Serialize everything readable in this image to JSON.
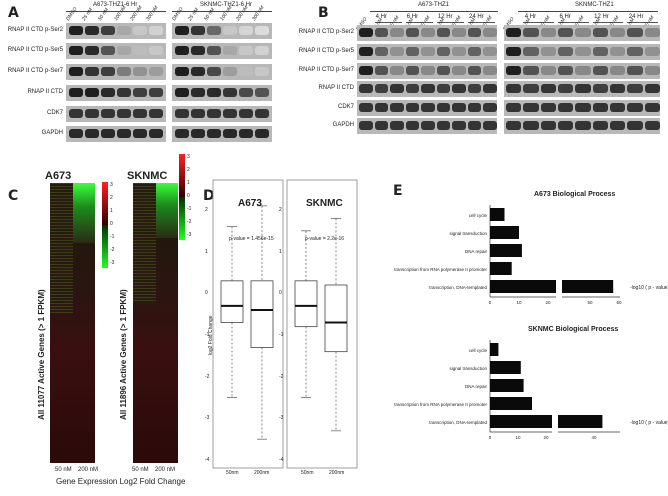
{
  "panels": {
    "A": "A",
    "B": "B",
    "C": "C",
    "D": "D",
    "E": "E"
  },
  "panel_a": {
    "groups": [
      "A673-THZ1-6 Hr",
      "SKNMC-THZ1-6 Hr"
    ],
    "lanes": [
      "DMSO",
      "25 nM",
      "50 nM",
      "100 nM",
      "200 nM",
      "300 nM"
    ],
    "rows": [
      "RNAP II CTD p-Ser2",
      "RNAP II CTD p-Ser5",
      "RNAP II CTD p-Ser7",
      "RNAP II CTD",
      "CDK7",
      "GAPDH"
    ],
    "intensity_a673": [
      [
        0.95,
        0.9,
        0.8,
        0.3,
        0.15,
        0.1
      ],
      [
        0.95,
        0.9,
        0.7,
        0.3,
        0.2,
        0.15
      ],
      [
        0.95,
        0.85,
        0.8,
        0.5,
        0.4,
        0.35
      ],
      [
        0.95,
        0.95,
        0.9,
        0.85,
        0.8,
        0.8
      ],
      [
        0.85,
        0.85,
        0.85,
        0.85,
        0.85,
        0.85
      ],
      [
        0.9,
        0.9,
        0.9,
        0.9,
        0.9,
        0.9
      ]
    ],
    "intensity_sknmc": [
      [
        0.95,
        0.85,
        0.6,
        0.15,
        0.08,
        0.05
      ],
      [
        0.95,
        0.9,
        0.7,
        0.3,
        0.15,
        0.1
      ],
      [
        0.95,
        0.9,
        0.75,
        0.35,
        0.2,
        0.15
      ],
      [
        0.95,
        0.9,
        0.9,
        0.85,
        0.75,
        0.7
      ],
      [
        0.85,
        0.85,
        0.85,
        0.85,
        0.85,
        0.85
      ],
      [
        0.9,
        0.9,
        0.9,
        0.9,
        0.9,
        0.9
      ]
    ]
  },
  "panel_b": {
    "groups": [
      "A673-THZ1",
      "SKNMC-THZ1"
    ],
    "times": [
      "4 Hr",
      "6 Hr",
      "12 Hr",
      "24 Hr"
    ],
    "lanes": [
      "DMSO",
      "50 nM",
      "100 nM",
      "50 nM",
      "100 nM",
      "50 nM",
      "100 nM",
      "50 nM",
      "100 nM"
    ],
    "rows": [
      "RNAP II CTD p-Ser2",
      "RNAP II CTD p-Ser5",
      "RNAP II CTD p-Ser7",
      "RNAP II CTD",
      "CDK7",
      "GAPDH"
    ]
  },
  "panel_c": {
    "lines": [
      "A673",
      "SKNMC"
    ],
    "ylabels": [
      "All 11077 Active Genes (> 1 FPKM)",
      "All 11896 Active Genes (> 1 FPKM)"
    ],
    "xlabels": [
      "50 nM",
      "200 nM"
    ],
    "bottom_label": "Gene Expression Log2 Fold Change",
    "scale_ticks": [
      "3",
      "2",
      "1",
      "0",
      "-1",
      "-2",
      "-3"
    ]
  },
  "panel_d": {
    "titles": [
      "A673",
      "SKNMC"
    ],
    "pvalues": [
      "p-value = 1.456e-15",
      "p-value = 2.2e-16"
    ],
    "ylabel": "log2 Fold Change",
    "xlabels": [
      "50nm",
      "200nm"
    ],
    "yticks": [
      "2",
      "1",
      "0",
      "-1",
      "-2",
      "-3",
      "-4"
    ]
  },
  "chart_data": [
    {
      "type": "bar",
      "title": "A673 Biological Process",
      "categories": [
        "cell cycle",
        "signal transduction",
        "DNA repair",
        "transcription from RNA polymerase II promoter",
        "transcription, DNA-templated"
      ],
      "values": [
        5,
        10,
        11,
        23,
        58
      ],
      "xlabel": "-log10 ( p - value)",
      "xticks": [
        "0",
        "10",
        "20",
        "50",
        "60"
      ],
      "axis_break": true
    },
    {
      "type": "bar",
      "title": "SKNMC Biological Process",
      "categories": [
        "cell cycle",
        "signal transduction",
        "DNA repair",
        "transcription from RNA polymerase II promoter",
        "transcription, DNA-templated"
      ],
      "values": [
        3,
        11,
        12,
        15,
        43
      ],
      "xlabel": "-log10 ( p - value)",
      "xticks": [
        "0",
        "10",
        "20",
        "40"
      ],
      "axis_break": true
    }
  ]
}
